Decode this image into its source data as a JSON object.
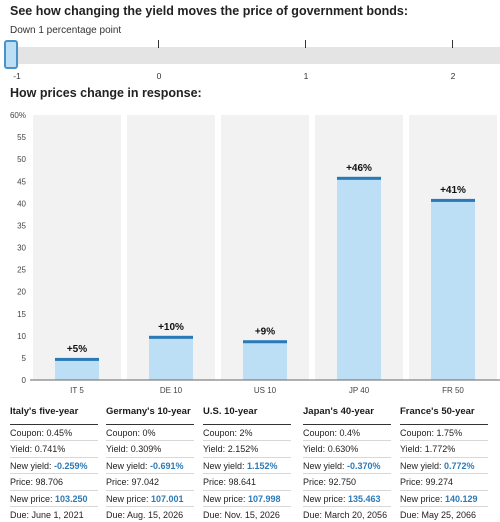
{
  "headings": {
    "slider": "See how changing the yield moves the price of government bonds:",
    "chart": "How prices change in response:"
  },
  "slider": {
    "caption": "Down 1 percentage point",
    "value": -1,
    "min": -1,
    "max": 2,
    "ticks": [
      "-1",
      "0",
      "1",
      "2"
    ]
  },
  "colors": {
    "bar_fill": "#bcdff5",
    "bar_cap": "#2b7ab8",
    "highlight_text": "#2b7ab8",
    "column_bg": "#f2f2f2"
  },
  "chart_data": {
    "type": "bar",
    "categories": [
      "IT 5",
      "DE 10",
      "US 10",
      "JP 40",
      "FR 50"
    ],
    "values": [
      5,
      10,
      9,
      46,
      41
    ],
    "value_labels": [
      "+5%",
      "+10%",
      "+9%",
      "+46%",
      "+41%"
    ],
    "ylim": [
      0,
      60
    ],
    "yticks": [
      "0",
      "5",
      "10",
      "15",
      "20",
      "25",
      "30",
      "35",
      "40",
      "45",
      "50",
      "55",
      "60%"
    ],
    "grid": false
  },
  "cards": [
    {
      "title": "Italy's five-year",
      "coupon_label": "Coupon:",
      "coupon": "0.45%",
      "yield_label": "Yield:",
      "yield": "0.741%",
      "new_yield_label": "New yield:",
      "new_yield": "-0.259%",
      "price_label": "Price:",
      "price": "98.706",
      "new_price_label": "New price:",
      "new_price": "103.250",
      "due_label": "Due:",
      "due": "June 1, 2021"
    },
    {
      "title": "Germany's 10-year",
      "coupon_label": "Coupon:",
      "coupon": "0%",
      "yield_label": "Yield:",
      "yield": "0.309%",
      "new_yield_label": "New yield:",
      "new_yield": "-0.691%",
      "price_label": "Price:",
      "price": "97.042",
      "new_price_label": "New price:",
      "new_price": "107.001",
      "due_label": "Due:",
      "due": "Aug. 15, 2026"
    },
    {
      "title": "U.S. 10-year",
      "coupon_label": "Coupon:",
      "coupon": "2%",
      "yield_label": "Yield:",
      "yield": "2.152%",
      "new_yield_label": "New yield:",
      "new_yield": "1.152%",
      "price_label": "Price:",
      "price": "98.641",
      "new_price_label": "New price:",
      "new_price": "107.998",
      "due_label": "Due:",
      "due": "Nov. 15, 2026"
    },
    {
      "title": "Japan's 40-year",
      "coupon_label": "Coupon:",
      "coupon": "0.4%",
      "yield_label": "Yield:",
      "yield": "0.630%",
      "new_yield_label": "New yield:",
      "new_yield": "-0.370%",
      "price_label": "Price:",
      "price": "92.750",
      "new_price_label": "New price:",
      "new_price": "135.463",
      "due_label": "Due:",
      "due": "March 20, 2056"
    },
    {
      "title": "France's 50-year",
      "coupon_label": "Coupon:",
      "coupon": "1.75%",
      "yield_label": "Yield:",
      "yield": "1.772%",
      "new_yield_label": "New yield:",
      "new_yield": "0.772%",
      "price_label": "Price:",
      "price": "99.274",
      "new_price_label": "New price:",
      "new_price": "140.129",
      "due_label": "Due:",
      "due": "May 25, 2066"
    }
  ]
}
